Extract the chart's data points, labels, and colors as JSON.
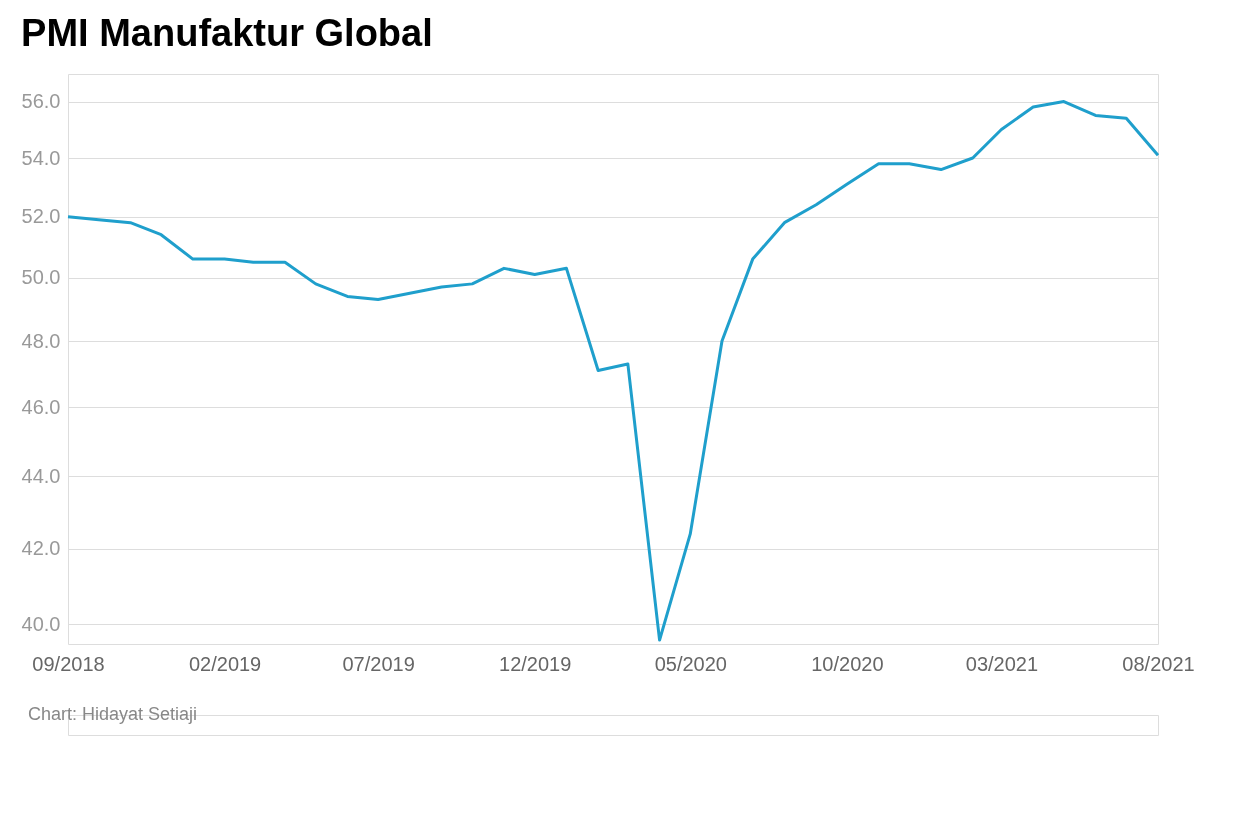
{
  "chart_data": {
    "type": "line",
    "title": "PMI Manufaktur Global",
    "x": [
      "2018-09",
      "2018-10",
      "2018-11",
      "2018-12",
      "2019-01",
      "2019-02",
      "2019-03",
      "2019-04",
      "2019-05",
      "2019-06",
      "2019-07",
      "2019-08",
      "2019-09",
      "2019-10",
      "2019-11",
      "2019-12",
      "2020-01",
      "2020-02",
      "2020-03",
      "2020-04",
      "2020-05",
      "2020-06",
      "2020-07",
      "2020-08",
      "2020-09",
      "2020-10",
      "2020-11",
      "2020-12",
      "2021-01",
      "2021-02",
      "2021-03",
      "2021-04",
      "2021-05",
      "2021-06",
      "2021-07",
      "2021-08"
    ],
    "series": [
      {
        "color": "#1f9fcc",
        "values": [
          52.0,
          51.9,
          51.8,
          51.4,
          50.6,
          50.6,
          50.5,
          50.5,
          49.8,
          49.4,
          49.3,
          49.5,
          49.7,
          49.8,
          50.3,
          50.1,
          50.3,
          47.1,
          47.3,
          39.6,
          42.4,
          48.0,
          50.6,
          51.8,
          52.4,
          53.1,
          53.8,
          53.8,
          53.6,
          54.0,
          55.0,
          55.8,
          56.0,
          55.5,
          55.4,
          54.1
        ]
      }
    ],
    "xlim": [
      "2018-09",
      "2021-08"
    ],
    "xticks": [
      {
        "value": "2018-09",
        "label": "09/2018"
      },
      {
        "value": "2019-02",
        "label": "02/2019"
      },
      {
        "value": "2019-07",
        "label": "07/2019"
      },
      {
        "value": "2019-12",
        "label": "12/2019"
      },
      {
        "value": "2020-05",
        "label": "05/2020"
      },
      {
        "value": "2020-10",
        "label": "10/2020"
      },
      {
        "value": "2021-03",
        "label": "03/2021"
      },
      {
        "value": "2021-08",
        "label": "08/2021"
      }
    ],
    "ylim": [
      39.5,
      57.0
    ],
    "yticks": [
      {
        "value": 40,
        "label": "40.0"
      },
      {
        "value": 42,
        "label": "42.0"
      },
      {
        "value": 44,
        "label": "44.0"
      },
      {
        "value": 46,
        "label": "46.0"
      },
      {
        "value": 48,
        "label": "48.0"
      },
      {
        "value": 50,
        "label": "50.0"
      },
      {
        "value": 52,
        "label": "52.0"
      },
      {
        "value": 54,
        "label": "54.0"
      },
      {
        "value": 56,
        "label": "56.0"
      }
    ],
    "log": "y",
    "grid": "y",
    "marker": "none",
    "line_style": "solid",
    "annotations": [
      "Chart: Hidayat Setiaji"
    ]
  }
}
